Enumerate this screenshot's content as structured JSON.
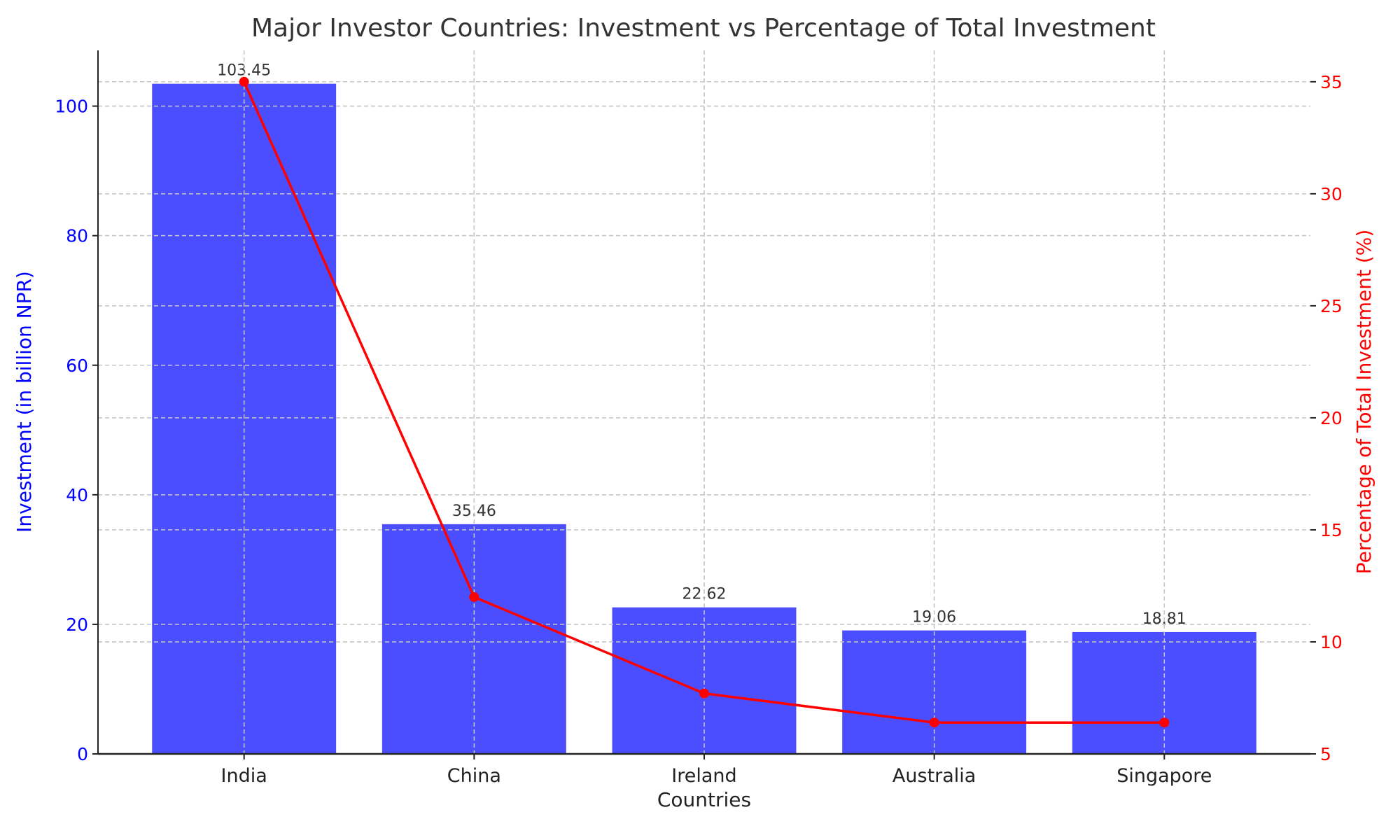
{
  "chart_data": {
    "type": "bar+line",
    "title": "Major Investor Countries: Investment vs Percentage of Total Investment",
    "xlabel": "Countries",
    "ylabel": "Investment (in billion NPR)",
    "y2label": "Percentage of Total Investment (%)",
    "categories": [
      "India",
      "China",
      "Ireland",
      "Australia",
      "Singapore"
    ],
    "series": [
      {
        "type": "bar",
        "axis": "left",
        "values": [
          103.45,
          35.46,
          22.62,
          19.06,
          18.81
        ],
        "labels": [
          "103.45",
          "35.46",
          "22.62",
          "19.06",
          "18.81"
        ],
        "color": "#4a4eff"
      },
      {
        "type": "line",
        "axis": "right",
        "values": [
          35.0,
          12.0,
          7.7,
          6.4,
          6.4
        ],
        "color": "#ff0000"
      }
    ],
    "ylim": [
      0,
      108.6
    ],
    "y2lim": [
      5,
      36.4
    ],
    "yticks": [
      "0",
      "20",
      "40",
      "60",
      "80",
      "100"
    ],
    "y2ticks": [
      "5",
      "10",
      "15",
      "20",
      "25",
      "30",
      "35"
    ],
    "grid": true,
    "colors": {
      "left_axis": "#0000ff",
      "right_axis": "#ff0000",
      "text": "#333333",
      "grid": "#c8c8c8"
    }
  }
}
